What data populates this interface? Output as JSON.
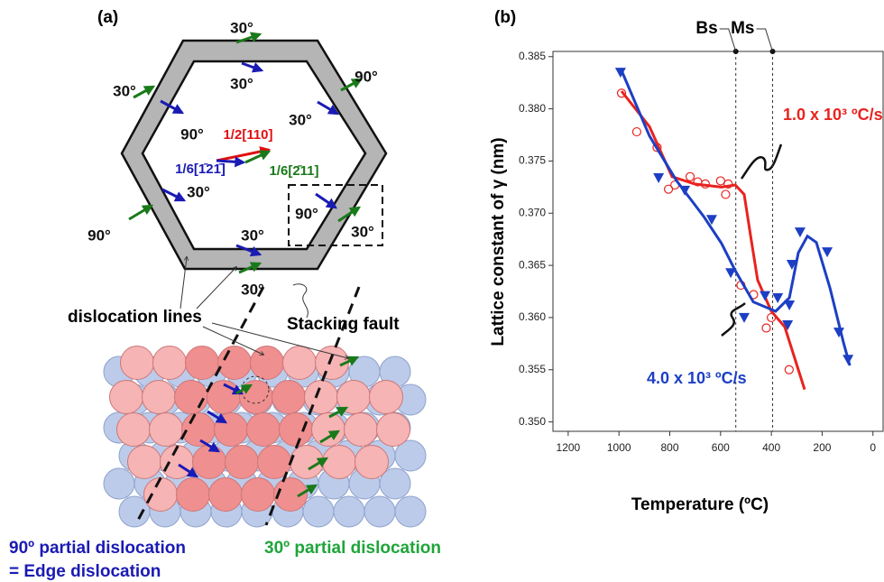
{
  "diagram": {
    "panel_label": "(a)",
    "angle_labels": [
      "30°",
      "30°",
      "30°",
      "90°",
      "90°",
      "30°",
      "30°",
      "90°",
      "90°",
      "30°",
      "30°",
      "30°"
    ],
    "vectors": [
      "1/2[110]",
      "1/6[1̄21̄]",
      "1/6[2̄11]"
    ],
    "callouts": [
      "dislocation lines",
      "Stacking fault"
    ],
    "legend": [
      "90º partial dislocation",
      "30º partial dislocation",
      "= Edge dislocation"
    ]
  },
  "chart_data": {
    "type": "scatter",
    "title": "(b)",
    "x_label": "Temperature (ºC)",
    "y_label": "Lattice constant of γ (nm)",
    "xlim": [
      1260,
      -40
    ],
    "xticks": [
      1200,
      1000,
      800,
      600,
      400,
      200,
      0
    ],
    "ylim": [
      0.3491,
      0.3855
    ],
    "yticks": [
      {
        "value": 0.35,
        "label": "0.350"
      },
      0.355,
      {
        "value": 0.36,
        "label": "0.360"
      },
      0.365,
      {
        "value": 0.37,
        "label": "0.370"
      },
      0.375,
      {
        "value": 0.38,
        "label": "0.380"
      },
      0.385
    ],
    "reference_lines": [
      {
        "label": "Bs",
        "value": 540
      },
      {
        "label": "Ms",
        "value": 395
      }
    ],
    "series": [
      {
        "name": "1.0 x 10³ ºC/s",
        "color": "#e8231f",
        "marker": "circle-open",
        "x": [
          990,
          930,
          850,
          805,
          780,
          720,
          690,
          660,
          600,
          580,
          570,
          520,
          470,
          420,
          400,
          330
        ],
        "values": [
          0.3815,
          0.3778,
          0.3763,
          0.3723,
          0.3727,
          0.3735,
          0.373,
          0.3728,
          0.3731,
          0.3718,
          0.3728,
          0.3631,
          0.3622,
          0.359,
          0.36,
          0.355
        ],
        "curve": {
          "x": [
            990,
            880,
            791,
            702,
            596,
            542,
            507,
            482,
            454,
            400,
            347,
            269
          ],
          "values": [
            0.3817,
            0.3783,
            0.3735,
            0.3728,
            0.3725,
            0.3727,
            0.3718,
            0.3679,
            0.3636,
            0.3606,
            0.3591,
            0.3531
          ]
        }
      },
      {
        "name": "4.0 x 10³ ºC/s",
        "color": "#1d3fc4",
        "marker": "triangle-down",
        "x": [
          994,
          844,
          741,
          635,
          560,
          507,
          425,
          375,
          329,
          336,
          319,
          287,
          180,
          134,
          98
        ],
        "values": [
          0.3835,
          0.3734,
          0.3722,
          0.3694,
          0.3643,
          0.36,
          0.3621,
          0.3619,
          0.3612,
          0.3593,
          0.3651,
          0.3682,
          0.3663,
          0.3586,
          0.356
        ],
        "curve": {
          "x": [
            994,
            880,
            773,
            667,
            596,
            542,
            471,
            383,
            329,
            294,
            258,
            223,
            169,
            116,
            91
          ],
          "values": [
            0.3839,
            0.3774,
            0.3731,
            0.3697,
            0.3671,
            0.3645,
            0.3615,
            0.3606,
            0.3619,
            0.3662,
            0.3678,
            0.3672,
            0.3628,
            0.3576,
            0.3554
          ]
        }
      }
    ]
  }
}
